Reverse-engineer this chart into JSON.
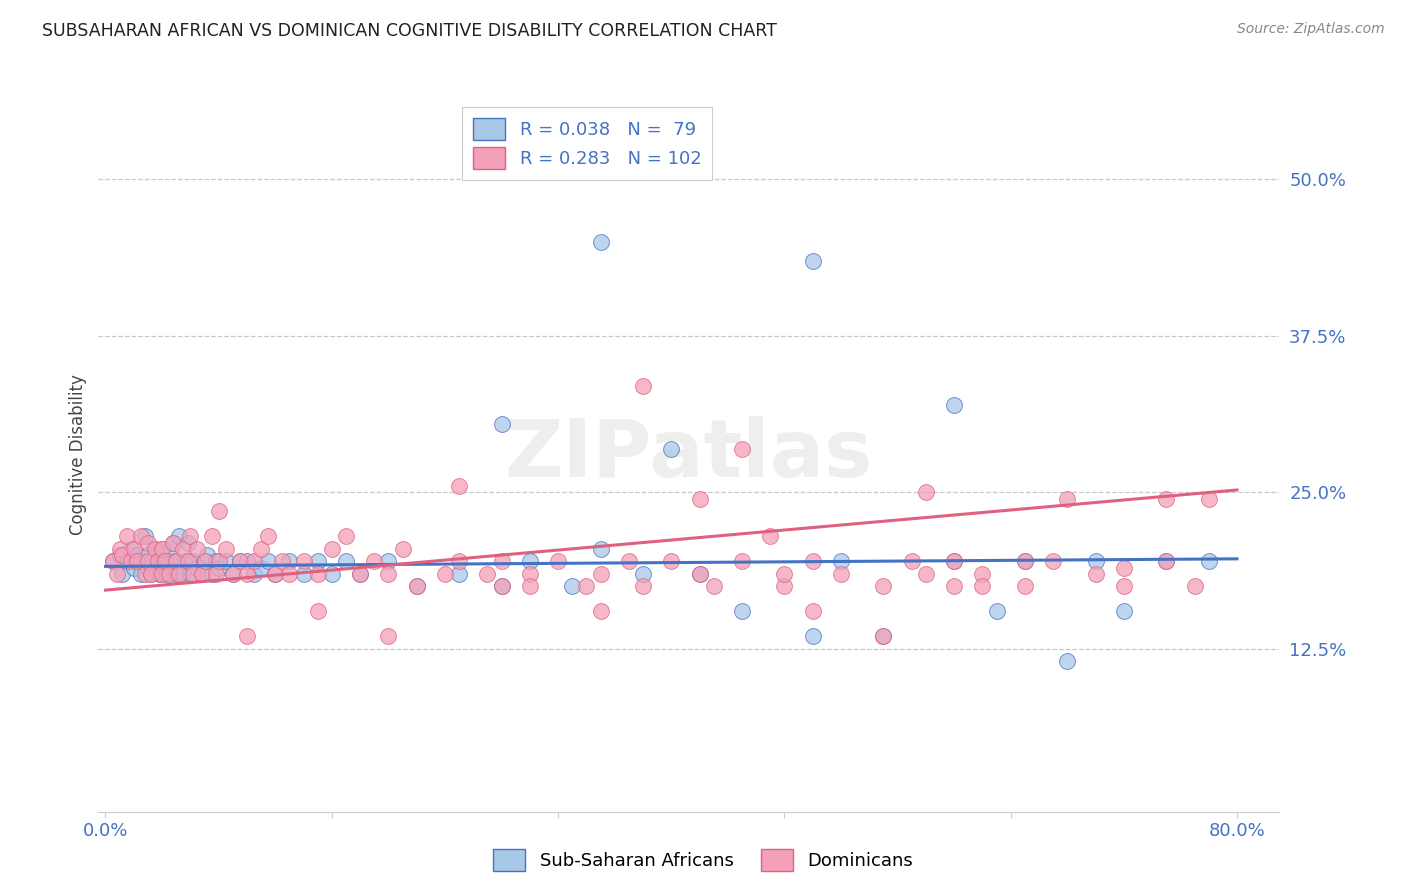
{
  "title": "SUBSAHARAN AFRICAN VS DOMINICAN COGNITIVE DISABILITY CORRELATION CHART",
  "source": "Source: ZipAtlas.com",
  "ylabel": "Cognitive Disability",
  "watermark": "ZIPatlas",
  "legend_labels": [
    "Sub-Saharan Africans",
    "Dominicans"
  ],
  "R_blue": 0.038,
  "N_blue": 79,
  "R_pink": 0.283,
  "N_pink": 102,
  "xlim": [
    -0.005,
    0.83
  ],
  "ylim": [
    -0.005,
    0.565
  ],
  "color_blue": "#a8c8e8",
  "color_blue_line": "#4472c4",
  "color_pink": "#f4a0b8",
  "color_pink_line": "#e06080",
  "background_color": "#ffffff",
  "grid_color": "#c8c8c8",
  "title_color": "#222222",
  "axis_label_color": "#444444",
  "tick_color": "#4472c4",
  "blue_x": [
    0.005,
    0.01,
    0.012,
    0.015,
    0.018,
    0.02,
    0.022,
    0.025,
    0.025,
    0.028,
    0.03,
    0.03,
    0.032,
    0.033,
    0.035,
    0.036,
    0.038,
    0.04,
    0.04,
    0.042,
    0.043,
    0.045,
    0.046,
    0.048,
    0.05,
    0.05,
    0.052,
    0.055,
    0.056,
    0.058,
    0.06,
    0.062,
    0.065,
    0.068,
    0.07,
    0.072,
    0.075,
    0.078,
    0.08,
    0.085,
    0.09,
    0.095,
    0.1,
    0.105,
    0.11,
    0.115,
    0.12,
    0.13,
    0.14,
    0.15,
    0.16,
    0.17,
    0.18,
    0.2,
    0.22,
    0.25,
    0.28,
    0.3,
    0.33,
    0.35,
    0.38,
    0.4,
    0.42,
    0.45,
    0.5,
    0.52,
    0.55,
    0.6,
    0.63,
    0.65,
    0.68,
    0.7,
    0.72,
    0.75,
    0.78,
    0.5,
    0.28,
    0.35,
    0.6
  ],
  "blue_y": [
    0.195,
    0.2,
    0.185,
    0.195,
    0.205,
    0.19,
    0.2,
    0.185,
    0.195,
    0.215,
    0.19,
    0.2,
    0.185,
    0.195,
    0.205,
    0.19,
    0.185,
    0.195,
    0.205,
    0.19,
    0.185,
    0.195,
    0.205,
    0.21,
    0.185,
    0.195,
    0.215,
    0.185,
    0.195,
    0.21,
    0.185,
    0.195,
    0.19,
    0.185,
    0.195,
    0.2,
    0.185,
    0.195,
    0.19,
    0.195,
    0.185,
    0.195,
    0.195,
    0.185,
    0.19,
    0.195,
    0.185,
    0.195,
    0.185,
    0.195,
    0.185,
    0.195,
    0.185,
    0.195,
    0.175,
    0.185,
    0.175,
    0.195,
    0.175,
    0.205,
    0.185,
    0.285,
    0.185,
    0.155,
    0.135,
    0.195,
    0.135,
    0.195,
    0.155,
    0.195,
    0.115,
    0.195,
    0.155,
    0.195,
    0.195,
    0.435,
    0.305,
    0.45,
    0.32
  ],
  "pink_x": [
    0.005,
    0.008,
    0.01,
    0.012,
    0.015,
    0.018,
    0.02,
    0.022,
    0.025,
    0.028,
    0.03,
    0.03,
    0.032,
    0.035,
    0.037,
    0.04,
    0.04,
    0.042,
    0.045,
    0.048,
    0.05,
    0.052,
    0.055,
    0.058,
    0.06,
    0.062,
    0.065,
    0.068,
    0.07,
    0.075,
    0.078,
    0.08,
    0.085,
    0.09,
    0.095,
    0.1,
    0.105,
    0.11,
    0.115,
    0.12,
    0.125,
    0.13,
    0.14,
    0.15,
    0.16,
    0.17,
    0.18,
    0.19,
    0.2,
    0.21,
    0.22,
    0.24,
    0.25,
    0.27,
    0.28,
    0.3,
    0.32,
    0.34,
    0.35,
    0.37,
    0.38,
    0.4,
    0.42,
    0.43,
    0.45,
    0.47,
    0.48,
    0.5,
    0.52,
    0.55,
    0.57,
    0.58,
    0.6,
    0.62,
    0.65,
    0.67,
    0.68,
    0.7,
    0.72,
    0.75,
    0.77,
    0.78,
    0.08,
    0.38,
    0.58,
    0.72,
    0.25,
    0.45,
    0.35,
    0.2,
    0.1,
    0.15,
    0.55,
    0.6,
    0.42,
    0.3,
    0.5,
    0.65,
    0.28,
    0.48,
    0.62,
    0.75
  ],
  "pink_y": [
    0.195,
    0.185,
    0.205,
    0.2,
    0.215,
    0.195,
    0.205,
    0.195,
    0.215,
    0.185,
    0.195,
    0.21,
    0.185,
    0.205,
    0.195,
    0.185,
    0.205,
    0.195,
    0.185,
    0.21,
    0.195,
    0.185,
    0.205,
    0.195,
    0.215,
    0.185,
    0.205,
    0.185,
    0.195,
    0.215,
    0.185,
    0.195,
    0.205,
    0.185,
    0.195,
    0.185,
    0.195,
    0.205,
    0.215,
    0.185,
    0.195,
    0.185,
    0.195,
    0.185,
    0.205,
    0.215,
    0.185,
    0.195,
    0.185,
    0.205,
    0.175,
    0.185,
    0.195,
    0.185,
    0.195,
    0.185,
    0.195,
    0.175,
    0.185,
    0.195,
    0.175,
    0.195,
    0.185,
    0.175,
    0.195,
    0.215,
    0.175,
    0.195,
    0.185,
    0.175,
    0.195,
    0.185,
    0.195,
    0.185,
    0.175,
    0.195,
    0.245,
    0.185,
    0.175,
    0.195,
    0.175,
    0.245,
    0.235,
    0.335,
    0.25,
    0.19,
    0.255,
    0.285,
    0.155,
    0.135,
    0.135,
    0.155,
    0.135,
    0.175,
    0.245,
    0.175,
    0.155,
    0.195,
    0.175,
    0.185,
    0.175,
    0.245
  ],
  "blue_trend_x": [
    0.0,
    0.8
  ],
  "blue_trend_y": [
    0.191,
    0.197
  ],
  "pink_trend_x": [
    0.0,
    0.8
  ],
  "pink_trend_y": [
    0.172,
    0.252
  ]
}
